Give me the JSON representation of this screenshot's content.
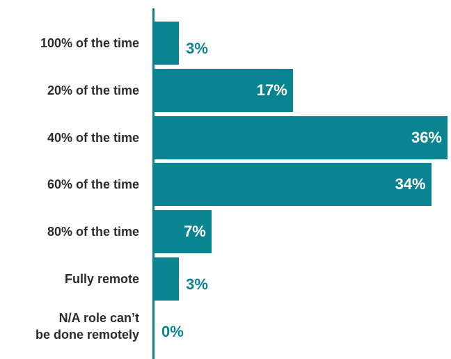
{
  "chart_data": {
    "type": "bar",
    "orientation": "horizontal",
    "categories": [
      "100% of the time",
      "20% of the time",
      "40% of the time",
      "60% of the time",
      "80% of the time",
      "Fully remote",
      "N/A role can’t\nbe done remotely"
    ],
    "values": [
      3,
      17,
      36,
      34,
      7,
      3,
      0
    ],
    "value_labels": [
      "3%",
      "17%",
      "36%",
      "34%",
      "7%",
      "3%",
      "0%"
    ],
    "color": "#0b8491"
  }
}
